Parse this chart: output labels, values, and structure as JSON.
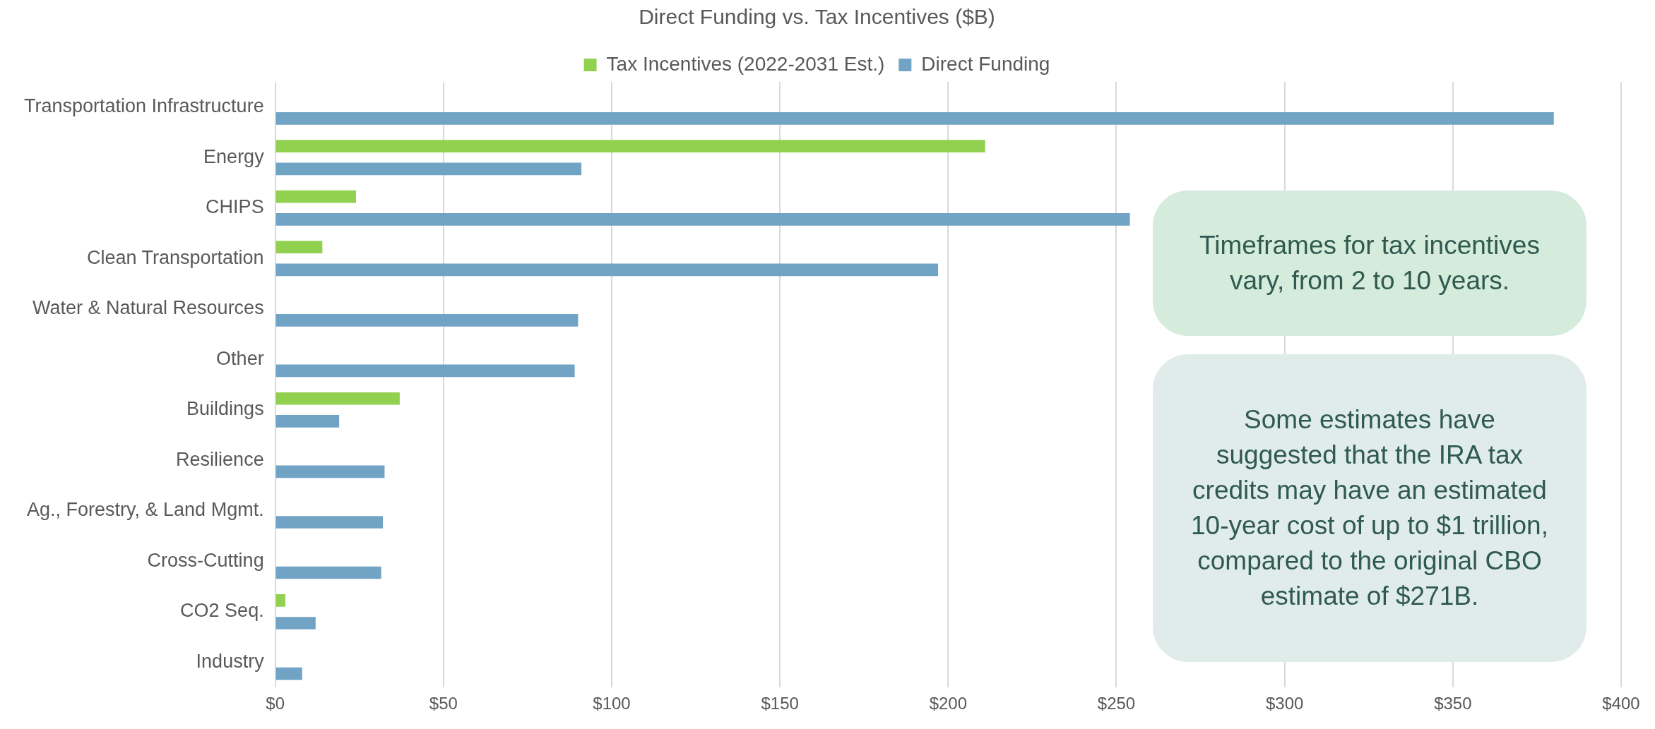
{
  "chart_data": {
    "type": "bar",
    "orientation": "horizontal",
    "title": "Direct Funding vs. Tax Incentives ($B)",
    "categories": [
      "Transportation Infrastructure",
      "Energy",
      "CHIPS",
      "Clean Transportation",
      "Water & Natural Resources",
      "Other",
      "Buildings",
      "Resilience",
      "Ag., Forestry, & Land Mgmt.",
      "Cross-Cutting",
      "CO2 Seq.",
      "Industry"
    ],
    "series": [
      {
        "name": "Tax Incentives (2022-2031 Est.)",
        "color": "#92d050",
        "values": [
          null,
          211,
          24,
          14,
          null,
          null,
          37,
          null,
          null,
          null,
          3,
          null
        ]
      },
      {
        "name": "Direct Funding",
        "color": "#71a3c5",
        "values": [
          380,
          91,
          254,
          197,
          90,
          89,
          19,
          32.5,
          32,
          31.5,
          12,
          8
        ]
      }
    ],
    "xlim": [
      0,
      400
    ],
    "xticks": [
      {
        "value": 0,
        "label": "$0"
      },
      {
        "value": 50,
        "label": "$50"
      },
      {
        "value": 100,
        "label": "$100"
      },
      {
        "value": 150,
        "label": "$150"
      },
      {
        "value": 200,
        "label": "$200"
      },
      {
        "value": 250,
        "label": "$250"
      },
      {
        "value": 300,
        "label": "$300"
      },
      {
        "value": 350,
        "label": "$350"
      },
      {
        "value": 400,
        "label": "$400"
      }
    ],
    "grid": "x",
    "legend": "top",
    "annotations": [
      "Timeframes for tax incentives vary, from 2 to 10 years.",
      "Some estimates have suggested that the IRA tax credits may have an estimated 10-year cost of up to $1 trillion, compared to the original CBO estimate of $271B."
    ]
  }
}
